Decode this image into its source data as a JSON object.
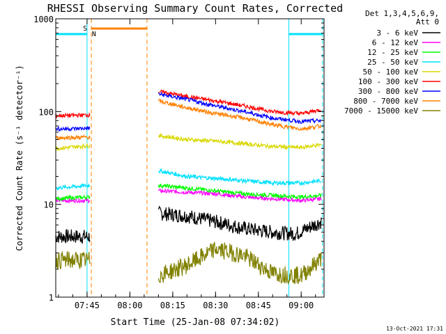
{
  "chart_data": {
    "type": "line",
    "title": "RHESSI Observing Summary Count Rates, Corrected",
    "xlabel": "Start Time (25-Jan-08 07:34:02)",
    "ylabel": "Corrected Count Rate (s⁻¹ detector⁻¹)",
    "yscale": "log",
    "ylim": [
      1,
      1000
    ],
    "xlim": [
      "07:34:02",
      "09:08:00"
    ],
    "x_ticks": [
      "07:45",
      "08:00",
      "08:15",
      "08:30",
      "08:45",
      "09:00"
    ],
    "y_ticks": [
      "1",
      "10",
      "100",
      "1000"
    ],
    "legend_header": [
      "Det 1,3,4,5,6,9,",
      "Att 0"
    ],
    "legend_position": "right",
    "timestamp": "13-Oct-2021 17:31",
    "flags": [
      {
        "label": "S",
        "color": "#ff8000"
      },
      {
        "label": "N",
        "color": "#00e0ff"
      }
    ],
    "series": [
      {
        "name": "3 - 6 keV",
        "color": "#000000",
        "segments": [
          {
            "x": [
              "07:34",
              "07:46"
            ],
            "y": [
              4.5,
              4.5
            ]
          },
          {
            "x": [
              "08:10",
              "08:20",
              "08:30",
              "08:40",
              "08:50",
              "08:58",
              "09:07"
            ],
            "y": [
              8.0,
              7.5,
              6.5,
              5.5,
              5.0,
              4.8,
              6.5
            ]
          }
        ]
      },
      {
        "name": "6 - 12 keV",
        "color": "#ff00ff",
        "segments": [
          {
            "x": [
              "07:34",
              "07:46"
            ],
            "y": [
              11.0,
              11.0
            ]
          },
          {
            "x": [
              "08:10",
              "08:20",
              "08:30",
              "08:40",
              "08:50",
              "09:00",
              "09:07"
            ],
            "y": [
              14.0,
              13.5,
              13.0,
              12.0,
              11.5,
              11.0,
              11.5
            ]
          }
        ]
      },
      {
        "name": "12 - 25 keV",
        "color": "#00ff00",
        "segments": [
          {
            "x": [
              "07:34",
              "07:46"
            ],
            "y": [
              11.5,
              12.0
            ]
          },
          {
            "x": [
              "08:10",
              "08:20",
              "08:30",
              "08:40",
              "08:50",
              "09:00",
              "09:07"
            ],
            "y": [
              16.0,
              15.0,
              14.0,
              13.0,
              12.5,
              12.0,
              12.5
            ]
          }
        ]
      },
      {
        "name": "25 - 50 keV",
        "color": "#00e0ff",
        "segments": [
          {
            "x": [
              "07:34",
              "07:46"
            ],
            "y": [
              15.0,
              16.0
            ]
          },
          {
            "x": [
              "08:10",
              "08:20",
              "08:30",
              "08:40",
              "08:50",
              "09:00",
              "09:07"
            ],
            "y": [
              23.0,
              20.0,
              19.0,
              18.0,
              17.0,
              17.0,
              18.0
            ]
          }
        ]
      },
      {
        "name": "50 - 100 keV",
        "color": "#d8d800",
        "segments": [
          {
            "x": [
              "07:34",
              "07:46"
            ],
            "y": [
              40.0,
              43.0
            ]
          },
          {
            "x": [
              "08:10",
              "08:20",
              "08:30",
              "08:40",
              "08:50",
              "09:00",
              "09:07"
            ],
            "y": [
              55.0,
              50.0,
              48.0,
              45.0,
              42.0,
              41.0,
              44.0
            ]
          }
        ]
      },
      {
        "name": "100 - 300 keV",
        "color": "#ff0000",
        "segments": [
          {
            "x": [
              "07:34",
              "07:46"
            ],
            "y": [
              90.0,
              92.0
            ]
          },
          {
            "x": [
              "08:10",
              "08:20",
              "08:30",
              "08:40",
              "08:50",
              "09:00",
              "09:07"
            ],
            "y": [
              165.0,
              145.0,
              130.0,
              115.0,
              100.0,
              95.0,
              105.0
            ]
          }
        ]
      },
      {
        "name": "300 - 800 keV",
        "color": "#0000ff",
        "segments": [
          {
            "x": [
              "07:34",
              "07:46"
            ],
            "y": [
              65.0,
              66.0
            ]
          },
          {
            "x": [
              "08:10",
              "08:20",
              "08:30",
              "08:40",
              "08:50",
              "09:00",
              "09:07"
            ],
            "y": [
              155.0,
              135.0,
              115.0,
              100.0,
              85.0,
              78.0,
              80.0
            ]
          }
        ]
      },
      {
        "name": "800 - 7000 keV",
        "color": "#ff8000",
        "segments": [
          {
            "x": [
              "07:34",
              "07:46"
            ],
            "y": [
              52.0,
              53.0
            ]
          },
          {
            "x": [
              "08:10",
              "08:20",
              "08:30",
              "08:40",
              "08:50",
              "09:00",
              "09:07"
            ],
            "y": [
              130.0,
              110.0,
              95.0,
              85.0,
              72.0,
              65.0,
              70.0
            ]
          }
        ]
      },
      {
        "name": "7000 - 15000 keV",
        "color": "#808000",
        "segments": [
          {
            "x": [
              "07:34",
              "07:46"
            ],
            "y": [
              2.5,
              2.5
            ]
          },
          {
            "x": [
              "08:10",
              "08:20",
              "08:30",
              "08:40",
              "08:50",
              "09:00",
              "09:07"
            ],
            "y": [
              1.7,
              2.2,
              3.3,
              2.8,
              1.8,
              1.7,
              2.6
            ]
          }
        ]
      }
    ]
  }
}
